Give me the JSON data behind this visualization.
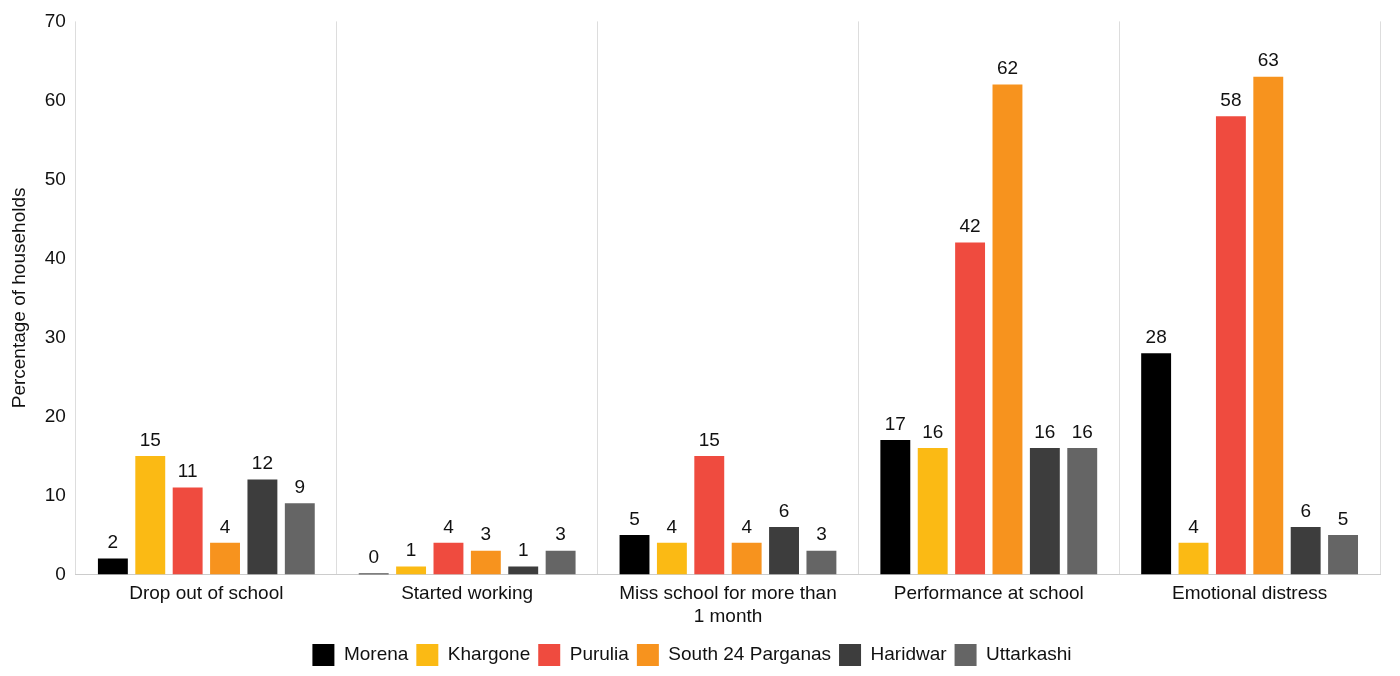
{
  "chart_data": {
    "type": "bar",
    "ylabel": "Percentage of households",
    "categories": [
      "Drop out of school",
      "Started working",
      "Miss school for more than 1 month",
      "Performance at school",
      "Emotional distress"
    ],
    "series": [
      {
        "name": "Morena",
        "color": "#000000",
        "values": [
          2,
          0,
          5,
          17,
          28
        ]
      },
      {
        "name": "Khargone",
        "color": "#fbba14",
        "values": [
          15,
          1,
          4,
          16,
          4
        ]
      },
      {
        "name": "Purulia",
        "color": "#ef4b3f",
        "values": [
          11,
          4,
          15,
          42,
          58
        ]
      },
      {
        "name": "South 24 Parganas",
        "color": "#f7931e",
        "values": [
          4,
          3,
          4,
          62,
          63
        ]
      },
      {
        "name": "Haridwar",
        "color": "#3d3d3d",
        "values": [
          12,
          1,
          6,
          16,
          6
        ]
      },
      {
        "name": "Uttarkashi",
        "color": "#656565",
        "values": [
          9,
          3,
          3,
          16,
          5
        ]
      }
    ],
    "ylim": [
      0,
      70
    ],
    "yticks": [
      0,
      10,
      20,
      30,
      40,
      50,
      60,
      70
    ],
    "grid": "x",
    "legend": "bottom",
    "data_labels": true
  }
}
